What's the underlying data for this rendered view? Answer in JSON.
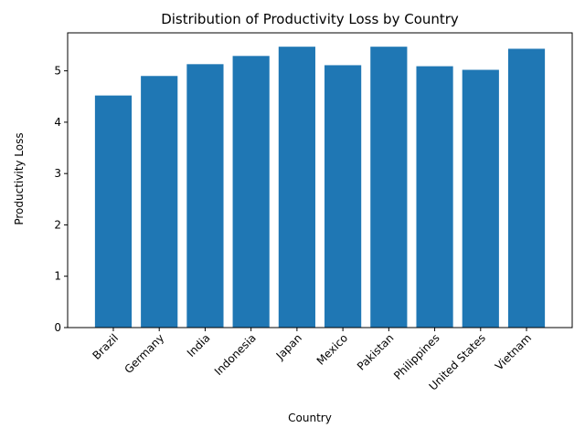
{
  "chart_data": {
    "type": "bar",
    "title": "Distribution of Productivity Loss by Country",
    "xlabel": "Country",
    "ylabel": "Productivity Loss",
    "categories": [
      "Brazil",
      "Germany",
      "India",
      "Indonesia",
      "Japan",
      "Mexico",
      "Pakistan",
      "Philippines",
      "United States",
      "Vietnam"
    ],
    "values": [
      4.52,
      4.9,
      5.13,
      5.29,
      5.47,
      5.11,
      5.47,
      5.09,
      5.02,
      5.43
    ],
    "ylim": [
      0,
      5.74
    ],
    "yticks": [
      0,
      1,
      2,
      3,
      4,
      5
    ],
    "bar_color": "#1f77b4",
    "grid": false,
    "legend": "none"
  }
}
